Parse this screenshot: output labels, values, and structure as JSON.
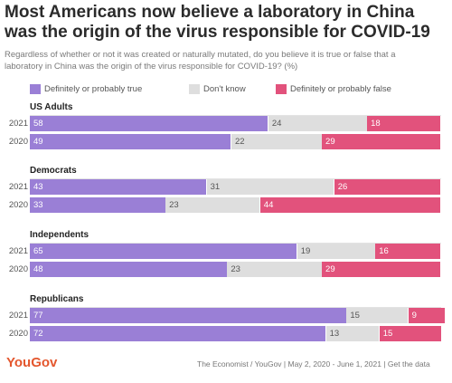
{
  "title": "Most Americans now believe a laboratory in China was the origin of the virus responsible for COVID-19",
  "subtitle": "Regardless of whether or not it was created or naturally mutated, do you believe it is true or false that a laboratory in China was the origin of the virus responsible for COVID-19? (%)",
  "footer": {
    "logo": "YouGov",
    "source": "The Economist / YouGov | May 2, 2020 - June 1, 2021 | Get the data"
  },
  "colors": {
    "true": "#9a7fd6",
    "dont_know": "#dedede",
    "false": "#e2527c",
    "label_on_true": "#ffffff",
    "label_on_dont_know": "#555555",
    "label_on_false": "#ffffff"
  },
  "chart_data": {
    "type": "bar",
    "orientation": "horizontal",
    "stacked": true,
    "xlim": [
      0,
      100
    ],
    "legend": [
      {
        "key": "true",
        "label": "Definitely or probably true"
      },
      {
        "key": "dont_know",
        "label": "Don't know"
      },
      {
        "key": "false",
        "label": "Definitely or probably false"
      }
    ],
    "groups": [
      {
        "name": "US Adults",
        "rows": [
          {
            "year": "2021",
            "true": 58,
            "dont_know": 24,
            "false": 18
          },
          {
            "year": "2020",
            "true": 49,
            "dont_know": 22,
            "false": 29
          }
        ]
      },
      {
        "name": "Democrats",
        "rows": [
          {
            "year": "2021",
            "true": 43,
            "dont_know": 31,
            "false": 26
          },
          {
            "year": "2020",
            "true": 33,
            "dont_know": 23,
            "false": 44
          }
        ]
      },
      {
        "name": "Independents",
        "rows": [
          {
            "year": "2021",
            "true": 65,
            "dont_know": 19,
            "false": 16
          },
          {
            "year": "2020",
            "true": 48,
            "dont_know": 23,
            "false": 29
          }
        ]
      },
      {
        "name": "Republicans",
        "rows": [
          {
            "year": "2021",
            "true": 77,
            "dont_know": 15,
            "false": 9
          },
          {
            "year": "2020",
            "true": 72,
            "dont_know": 13,
            "false": 15
          }
        ]
      }
    ]
  }
}
